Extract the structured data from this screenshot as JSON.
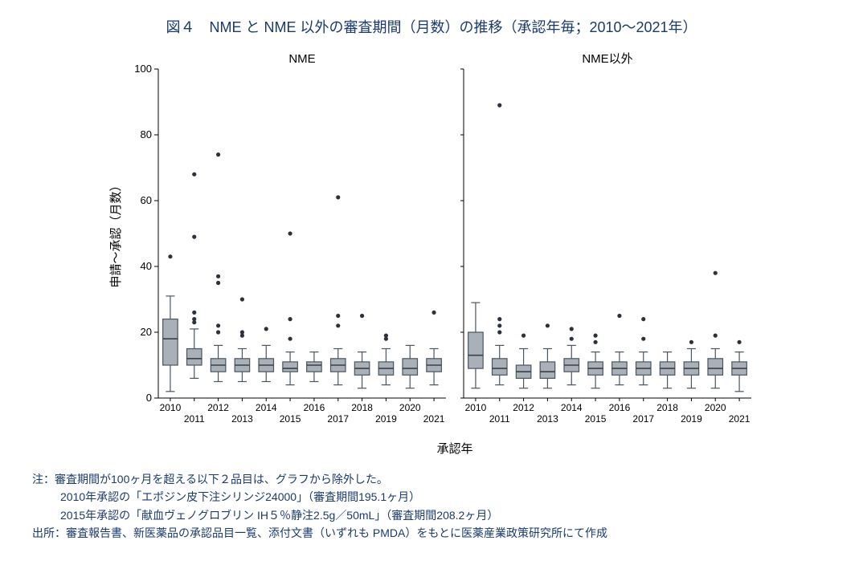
{
  "title": "図４　NME と NME 以外の審査期間（月数）の推移（承認年毎；2010～2021年）",
  "chart": {
    "type": "boxplot-panel",
    "ylabel": "申請～承認（月数）",
    "xlabel": "承認年",
    "panels": [
      "NME",
      "NME以外"
    ],
    "years": [
      "2010",
      "2011",
      "2012",
      "2013",
      "2014",
      "2015",
      "2016",
      "2017",
      "2018",
      "2019",
      "2020",
      "2021"
    ],
    "ylim": [
      0,
      100
    ],
    "yticks": [
      0,
      20,
      40,
      60,
      80,
      100
    ],
    "colors": {
      "axis": "#000000",
      "box_fill": "#a9b0b8",
      "box_stroke": "#4a5560",
      "median": "#3a4048",
      "outlier": "#2b323c",
      "text": "#000000",
      "title": "#1a3a6e"
    },
    "box_width": 0.62,
    "data": {
      "NME": [
        {
          "year": "2010",
          "min": 2,
          "q1": 10,
          "median": 18,
          "q3": 24,
          "max": 31,
          "outliers": [
            43
          ]
        },
        {
          "year": "2011",
          "min": 6,
          "q1": 10,
          "median": 12,
          "q3": 15,
          "max": 21,
          "outliers": [
            23,
            24,
            26,
            49,
            68
          ]
        },
        {
          "year": "2012",
          "min": 5,
          "q1": 8,
          "median": 10,
          "q3": 12,
          "max": 16,
          "outliers": [
            20,
            22,
            35,
            37,
            74
          ]
        },
        {
          "year": "2013",
          "min": 5,
          "q1": 8,
          "median": 10,
          "q3": 12,
          "max": 15,
          "outliers": [
            19,
            20,
            30
          ]
        },
        {
          "year": "2014",
          "min": 5,
          "q1": 8,
          "median": 10,
          "q3": 12,
          "max": 16,
          "outliers": [
            21
          ]
        },
        {
          "year": "2015",
          "min": 4,
          "q1": 8,
          "median": 9,
          "q3": 11,
          "max": 14,
          "outliers": [
            18,
            24,
            50
          ]
        },
        {
          "year": "2016",
          "min": 5,
          "q1": 8,
          "median": 10,
          "q3": 11,
          "max": 14,
          "outliers": []
        },
        {
          "year": "2017",
          "min": 4,
          "q1": 8,
          "median": 10,
          "q3": 12,
          "max": 15,
          "outliers": [
            22,
            25,
            61
          ]
        },
        {
          "year": "2018",
          "min": 3,
          "q1": 7,
          "median": 9,
          "q3": 11,
          "max": 14,
          "outliers": [
            25
          ]
        },
        {
          "year": "2019",
          "min": 4,
          "q1": 7,
          "median": 9,
          "q3": 11,
          "max": 15,
          "outliers": [
            18,
            19
          ]
        },
        {
          "year": "2020",
          "min": 3,
          "q1": 7,
          "median": 9,
          "q3": 12,
          "max": 16,
          "outliers": []
        },
        {
          "year": "2021",
          "min": 4,
          "q1": 8,
          "median": 10,
          "q3": 12,
          "max": 15,
          "outliers": [
            26
          ]
        }
      ],
      "NME以外": [
        {
          "year": "2010",
          "min": 3,
          "q1": 9,
          "median": 13,
          "q3": 20,
          "max": 29,
          "outliers": []
        },
        {
          "year": "2011",
          "min": 4,
          "q1": 7,
          "median": 9,
          "q3": 12,
          "max": 16,
          "outliers": [
            20,
            22,
            24,
            89
          ]
        },
        {
          "year": "2012",
          "min": 3,
          "q1": 6,
          "median": 8,
          "q3": 10,
          "max": 15,
          "outliers": [
            19
          ]
        },
        {
          "year": "2013",
          "min": 3,
          "q1": 6,
          "median": 8,
          "q3": 11,
          "max": 15,
          "outliers": [
            22
          ]
        },
        {
          "year": "2014",
          "min": 4,
          "q1": 8,
          "median": 10,
          "q3": 12,
          "max": 16,
          "outliers": [
            18,
            21
          ]
        },
        {
          "year": "2015",
          "min": 3,
          "q1": 7,
          "median": 9,
          "q3": 11,
          "max": 14,
          "outliers": [
            17,
            19
          ]
        },
        {
          "year": "2016",
          "min": 4,
          "q1": 7,
          "median": 9,
          "q3": 11,
          "max": 14,
          "outliers": [
            25
          ]
        },
        {
          "year": "2017",
          "min": 4,
          "q1": 7,
          "median": 9,
          "q3": 11,
          "max": 14,
          "outliers": [
            18,
            24
          ]
        },
        {
          "year": "2018",
          "min": 3,
          "q1": 7,
          "median": 9,
          "q3": 11,
          "max": 14,
          "outliers": []
        },
        {
          "year": "2019",
          "min": 3,
          "q1": 7,
          "median": 9,
          "q3": 11,
          "max": 15,
          "outliers": [
            17
          ]
        },
        {
          "year": "2020",
          "min": 3,
          "q1": 7,
          "median": 9,
          "q3": 12,
          "max": 15,
          "outliers": [
            19,
            38
          ]
        },
        {
          "year": "2021",
          "min": 2,
          "q1": 7,
          "median": 9,
          "q3": 11,
          "max": 14,
          "outliers": [
            17
          ]
        }
      ]
    }
  },
  "footnote": {
    "label_note": "注：",
    "note_line1": "審査期間が100ヶ月を超える以下２品目は、グラフから除外した。",
    "note_line2": "2010年承認の「エポジン皮下注シリンジ24000」（審査期間195.1ヶ月）",
    "note_line3": "2015年承認の「献血ヴェノグロブリン IH５％静注2.5g／50mL」（審査期間208.2ヶ月）",
    "label_source": "出所：",
    "source_text": "審査報告書、新医薬品の承認品目一覧、添付文書（いずれも PMDA）をもとに医薬産業政策研究所にて作成"
  }
}
